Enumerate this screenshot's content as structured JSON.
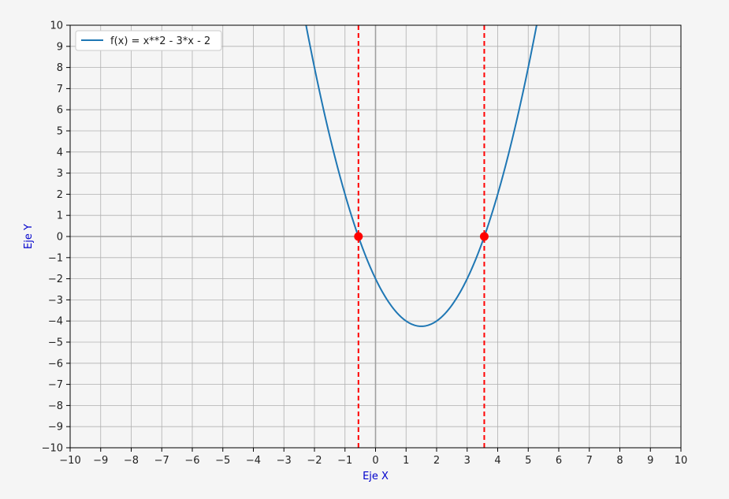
{
  "chart_data": {
    "type": "line",
    "title": "",
    "xlabel": "Eje X",
    "ylabel": "Eje Y",
    "xlim": [
      -10,
      10
    ],
    "ylim": [
      -10,
      10
    ],
    "xticks": [
      -10,
      -9,
      -8,
      -7,
      -6,
      -5,
      -4,
      -3,
      -2,
      -1,
      0,
      1,
      2,
      3,
      4,
      5,
      6,
      7,
      8,
      9,
      10
    ],
    "yticks": [
      -10,
      -9,
      -8,
      -7,
      -6,
      -5,
      -4,
      -3,
      -2,
      -1,
      0,
      1,
      2,
      3,
      4,
      5,
      6,
      7,
      8,
      9,
      10
    ],
    "grid": true,
    "legend_position": "top-left",
    "series": [
      {
        "name": "f(x) = x**2 - 3*x - 2",
        "color": "#1f77b4",
        "function": {
          "a": 1,
          "b": -3,
          "c": -2
        },
        "x_range": [
          -10,
          10
        ]
      }
    ],
    "roots": [
      {
        "x": -0.56,
        "y": 0
      },
      {
        "x": 3.56,
        "y": 0
      }
    ],
    "root_color": "#ff0000",
    "axis_title_color": "#0000cc"
  }
}
